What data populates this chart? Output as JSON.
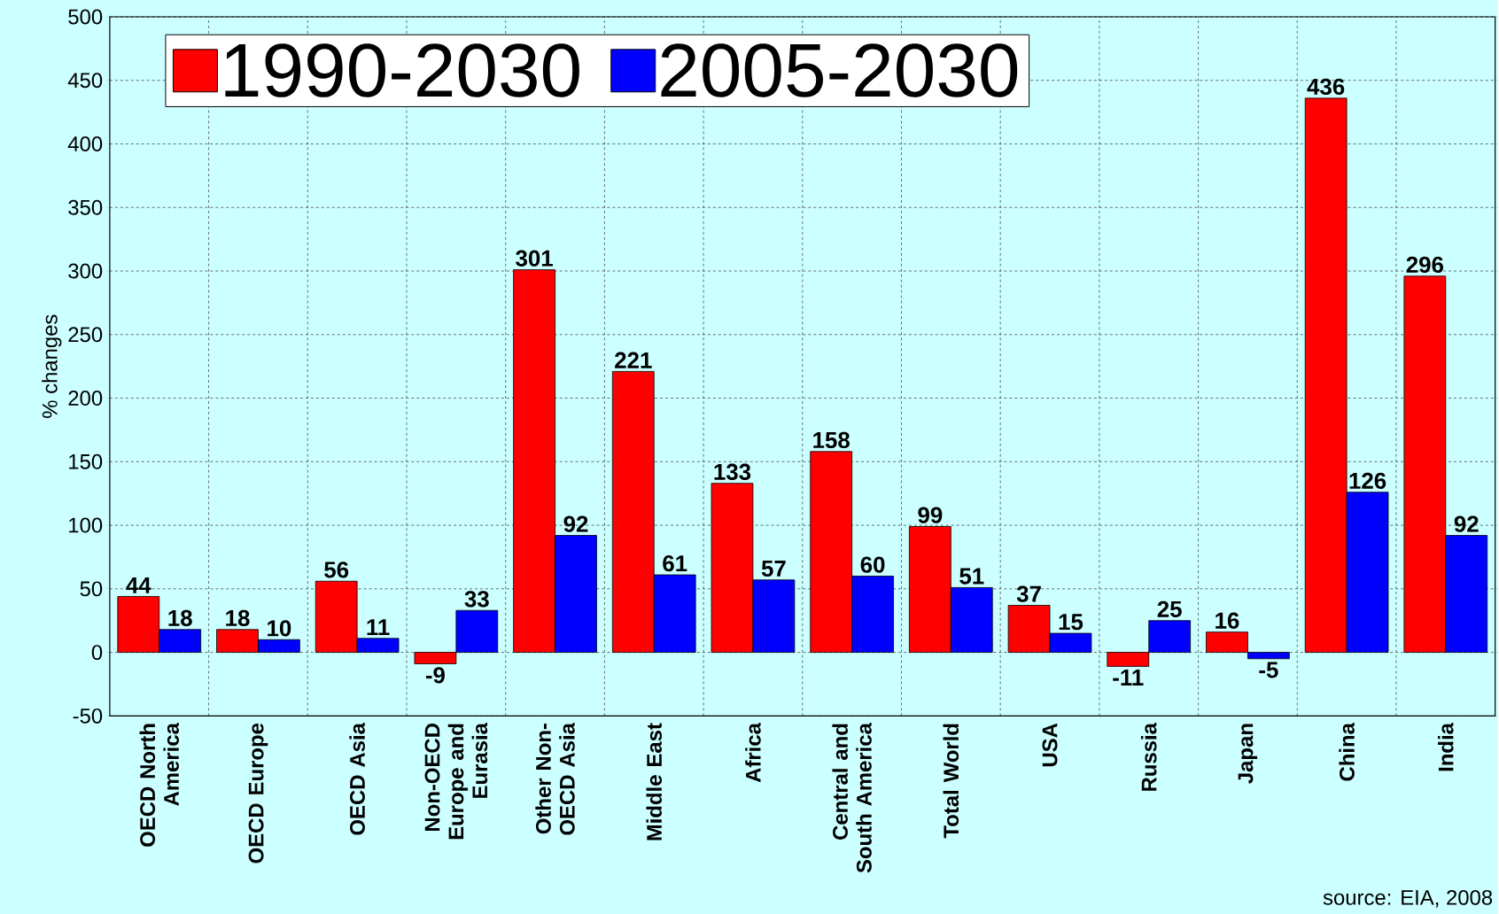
{
  "chart_data": {
    "type": "bar",
    "ylabel": "% changes",
    "categories": [
      "OECD North America",
      "OECD Europe",
      "OECD Asia",
      "Non-OECD Europe and Eurasia",
      "Other Non-OECD Asia",
      "Middle East",
      "Africa",
      "Central and South America",
      "Total World",
      "USA",
      "Russia",
      "Japan",
      "China",
      "India"
    ],
    "series": [
      {
        "name": "1990-2030",
        "color": "#ff0000",
        "values": [
          44,
          18,
          56,
          -9,
          301,
          221,
          133,
          158,
          99,
          37,
          -11,
          16,
          436,
          296
        ]
      },
      {
        "name": "2005-2030",
        "color": "#0000ff",
        "values": [
          18,
          10,
          11,
          33,
          92,
          61,
          57,
          60,
          51,
          15,
          25,
          -5,
          126,
          92
        ]
      }
    ],
    "ylim": [
      -50,
      500
    ],
    "yticks": [
      -50,
      0,
      50,
      100,
      150,
      200,
      250,
      300,
      350,
      400,
      450,
      500
    ],
    "grid": true,
    "legend": "top left",
    "data_labels": true,
    "annotations": [
      "source: EIA, 2008"
    ]
  }
}
